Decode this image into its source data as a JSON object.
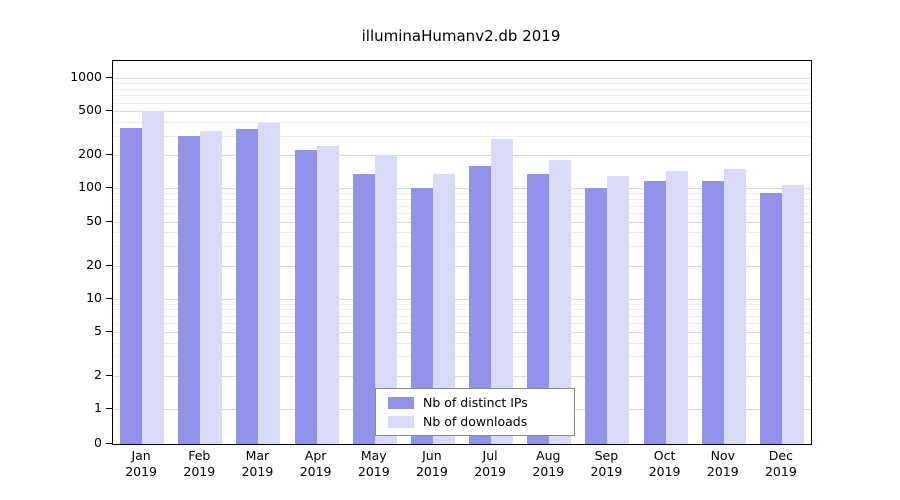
{
  "chart_data": {
    "type": "bar",
    "title": "illuminaHumanv2.db 2019",
    "x_year": "2019",
    "categories": [
      "Jan",
      "Feb",
      "Mar",
      "Apr",
      "May",
      "Jun",
      "Jul",
      "Aug",
      "Sep",
      "Oct",
      "Nov",
      "Dec"
    ],
    "series": [
      {
        "name": "Nb of distinct IPs",
        "color": "#9192ea",
        "values": [
          350,
          300,
          345,
          225,
          135,
          100,
          160,
          135,
          100,
          118,
          118,
          90
        ]
      },
      {
        "name": "Nb of downloads",
        "color": "#d9d9f8",
        "values": [
          505,
          330,
          390,
          245,
          195,
          135,
          280,
          180,
          130,
          145,
          150,
          108
        ]
      }
    ],
    "y_ticks": [
      1000,
      500,
      200,
      100,
      50,
      20,
      10,
      5,
      2,
      1,
      0
    ],
    "y_minor_gridlines": [
      3,
      4,
      6,
      7,
      8,
      9,
      30,
      40,
      60,
      70,
      80,
      90,
      300,
      400,
      600,
      700,
      800,
      900
    ],
    "y_scale": "log",
    "ylim": [
      0,
      1000
    ],
    "xlabel": "",
    "ylabel": "",
    "grid": true,
    "legend_position": "bottom-center"
  }
}
